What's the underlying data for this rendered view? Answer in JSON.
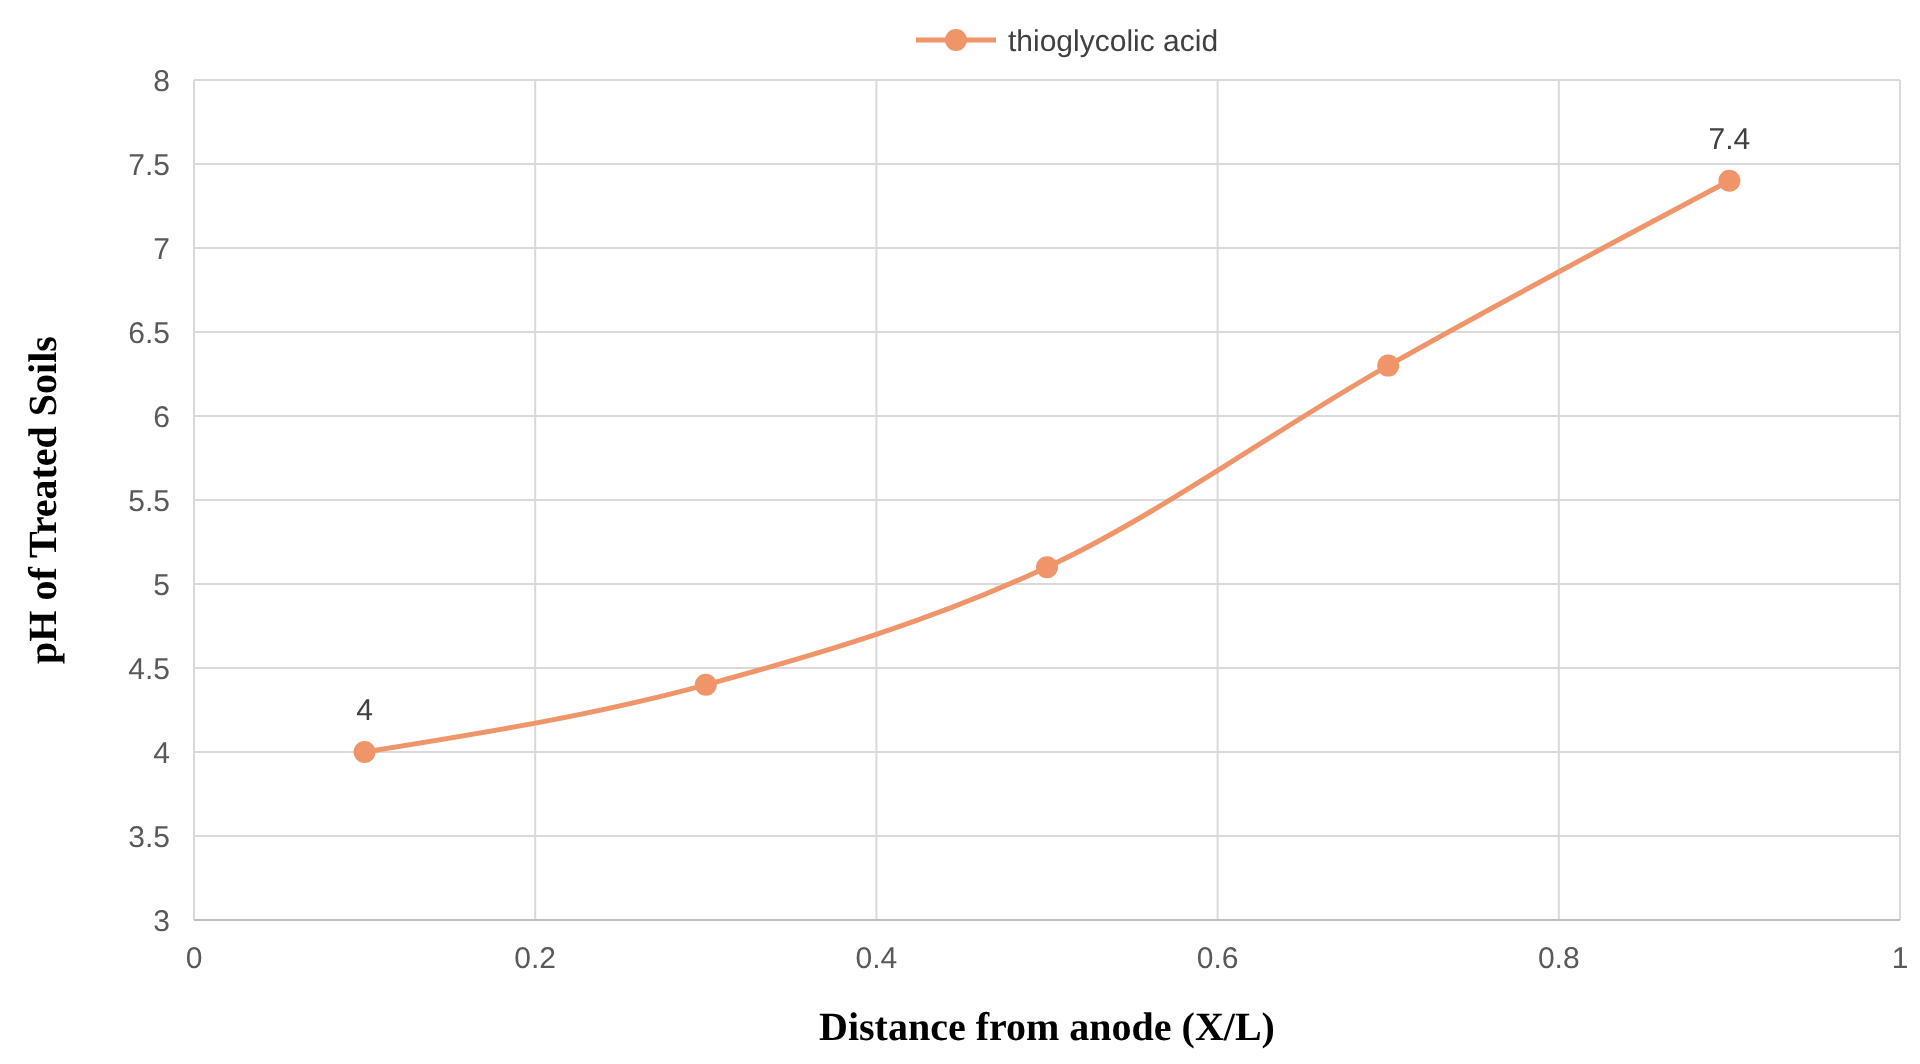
{
  "chart_data": {
    "type": "line",
    "xlabel": "Distance from anode (X/L)",
    "ylabel": "pH of Treated Soils",
    "x": [
      0.1,
      0.3,
      0.5,
      0.7,
      0.9
    ],
    "series": [
      {
        "name": "thioglycolic acid",
        "color": "#f0956a",
        "values": [
          4,
          4.4,
          5.1,
          6.3,
          7.4
        ],
        "value_labels": [
          "4",
          null,
          null,
          null,
          "7.4"
        ]
      }
    ],
    "xlim": [
      0,
      1
    ],
    "xticks": [
      0,
      0.2,
      0.4,
      0.6,
      0.8,
      1
    ],
    "ylim": [
      3,
      8
    ],
    "yticks": [
      3,
      3.5,
      4,
      4.5,
      5,
      5.5,
      6,
      6.5,
      7,
      7.5,
      8
    ],
    "grid": true,
    "legend": "top",
    "marker": "circle",
    "line_style": "solid"
  }
}
